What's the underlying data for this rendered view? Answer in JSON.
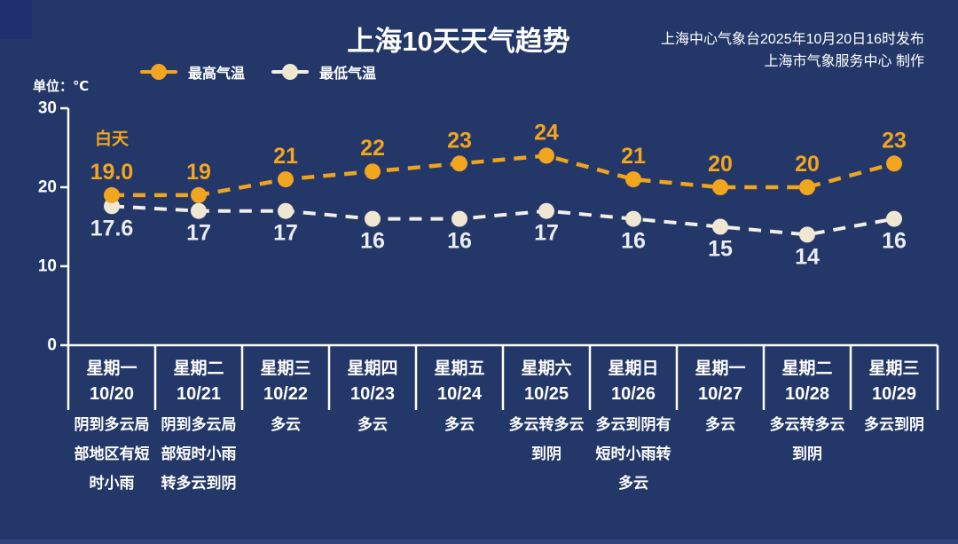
{
  "page": {
    "background": "#233768"
  },
  "header": {
    "title": "上海10天天气趋势",
    "publisher_line1": "上海中心气象台2025年10月20日16时发布",
    "publisher_line2": "上海市气象服务中心 制作",
    "unit_label": "单位：℃"
  },
  "legend": [
    {
      "label": "最高气温",
      "color": "#f2a51f",
      "line_color": "#eea41f"
    },
    {
      "label": "最低气温",
      "color": "#f0e7d2",
      "line_color": "#f2efe7"
    }
  ],
  "chart_data": {
    "type": "line",
    "title": "上海10天天气趋势",
    "annotation": "白天",
    "ylabel": "单位：℃",
    "ylim": [
      0,
      30
    ],
    "yticks": [
      30,
      20,
      10,
      0
    ],
    "grid": false,
    "legend_position": "top",
    "line_style": "dashed",
    "categories": [
      {
        "day": "星期一",
        "date": "10/20",
        "weather": "阴到多云局部地区有短时小雨"
      },
      {
        "day": "星期二",
        "date": "10/21",
        "weather": "阴到多云局部短时小雨转多云到阴"
      },
      {
        "day": "星期三",
        "date": "10/22",
        "weather": "多云"
      },
      {
        "day": "星期四",
        "date": "10/23",
        "weather": "多云"
      },
      {
        "day": "星期五",
        "date": "10/24",
        "weather": "多云"
      },
      {
        "day": "星期六",
        "date": "10/25",
        "weather": "多云转多云到阴"
      },
      {
        "day": "星期日",
        "date": "10/26",
        "weather": "多云到阴有短时小雨转多云"
      },
      {
        "day": "星期一",
        "date": "10/27",
        "weather": "多云"
      },
      {
        "day": "星期二",
        "date": "10/28",
        "weather": "多云转多云到阴"
      },
      {
        "day": "星期三",
        "date": "10/29",
        "weather": "多云到阴"
      }
    ],
    "series": [
      {
        "name": "最高气温",
        "color": "#f2a51f",
        "values": [
          19.0,
          19,
          21,
          22,
          23,
          24,
          21,
          20,
          20,
          23
        ],
        "labels": [
          "19.0",
          "19",
          "21",
          "22",
          "23",
          "24",
          "21",
          "20",
          "20",
          "23"
        ]
      },
      {
        "name": "最低气温",
        "color": "#f0e7d2",
        "values": [
          17.6,
          17,
          17,
          16,
          16,
          17,
          16,
          15,
          14,
          16
        ],
        "labels": [
          "17.6",
          "17",
          "17",
          "16",
          "16",
          "17",
          "16",
          "15",
          "14",
          "16"
        ]
      }
    ]
  }
}
